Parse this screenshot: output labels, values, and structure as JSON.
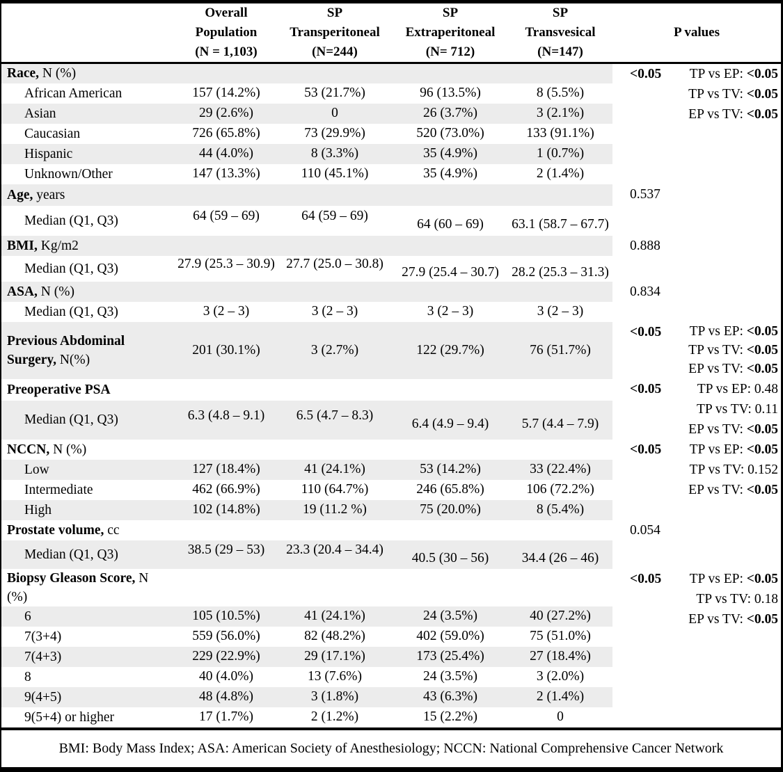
{
  "colors": {
    "stripe": "#ececec",
    "border": "#000000",
    "text": "#000000",
    "background": "#ffffff"
  },
  "table": {
    "header": {
      "col_labels": [
        {
          "key": "overall",
          "lines": [
            "Overall",
            "Population",
            "(N = 1,103)"
          ]
        },
        {
          "key": "transperitoneal",
          "lines": [
            "SP",
            "Transperitoneal",
            "(N=244)"
          ]
        },
        {
          "key": "extraperitoneal",
          "lines": [
            "SP",
            "Extraperitoneal",
            "(N= 712)"
          ]
        },
        {
          "key": "transvesical",
          "lines": [
            "SP",
            "Transvesical",
            "(N=147)"
          ]
        }
      ],
      "p_label": "P values"
    },
    "rows": [
      {
        "name": "race-header",
        "type": "section",
        "bold": "Race,",
        "rest": " N (%)",
        "values": [
          "",
          "",
          "",
          ""
        ],
        "p": {
          "text": "<0.05",
          "bold": true,
          "span": 6
        },
        "pair": {
          "lines": [
            {
              "label": "TP vs EP: ",
              "value": "<0.05",
              "bold": true
            },
            {
              "label": "TP vs TV: ",
              "value": "<0.05",
              "bold": true
            },
            {
              "label": "EP vs TV: ",
              "value": "<0.05",
              "bold": true
            }
          ]
        }
      },
      {
        "name": "race-african-american",
        "type": "item",
        "label": "African American",
        "values": [
          "157 (14.2%)",
          "53 (21.7%)",
          "96 (13.5%)",
          "8 (5.5%)"
        ]
      },
      {
        "name": "race-asian",
        "type": "item",
        "label": "Asian",
        "values": [
          "29 (2.6%)",
          "0",
          "26 (3.7%)",
          "3 (2.1%)"
        ]
      },
      {
        "name": "race-caucasian",
        "type": "item",
        "label": "Caucasian",
        "values": [
          "726 (65.8%)",
          "73 (29.9%)",
          "520 (73.0%)",
          "133 (91.1%)"
        ]
      },
      {
        "name": "race-hispanic",
        "type": "item",
        "label": "Hispanic",
        "values": [
          "44 (4.0%)",
          "8 (3.3%)",
          "35 (4.9%)",
          "1 (0.7%)"
        ]
      },
      {
        "name": "race-unknown-other",
        "type": "item",
        "label": "Unknown/Other",
        "values": [
          "147 (13.3%)",
          "110 (45.1%)",
          "35 (4.9%)",
          "2 (1.4%)"
        ]
      },
      {
        "name": "age-header",
        "type": "section",
        "bold": "Age,",
        "rest": " years",
        "values": [
          "",
          "",
          "",
          ""
        ],
        "p": {
          "text": "0.537",
          "bold": false,
          "span": 2
        }
      },
      {
        "name": "age-median",
        "type": "item",
        "label": "Median (Q1, Q3)",
        "values": [
          "64 (59 – 69)",
          "64 (59 – 69)",
          "64 (60 – 69)",
          "63.1 (58.7 – 67.7)"
        ]
      },
      {
        "name": "bmi-header",
        "type": "section",
        "bold": "BMI,",
        "rest": " Kg/m2",
        "values": [
          "",
          "",
          "",
          ""
        ],
        "p": {
          "text": "0.888",
          "bold": false,
          "span": 2
        }
      },
      {
        "name": "bmi-median",
        "type": "item",
        "label": "Median (Q1, Q3)",
        "values": [
          "27.9 (25.3 – 30.9)",
          "27.7 (25.0 – 30.8)",
          "27.9 (25.4 – 30.7)",
          "28.2 (25.3 – 31.3)"
        ]
      },
      {
        "name": "asa-header",
        "type": "section",
        "bold": "ASA,",
        "rest": " N (%)",
        "values": [
          "",
          "",
          "",
          ""
        ],
        "p": {
          "text": "0.834",
          "bold": false,
          "span": 2
        }
      },
      {
        "name": "asa-median",
        "type": "item",
        "label": "Median (Q1, Q3)",
        "values": [
          "3 (2 – 3)",
          "3 (2 – 3)",
          "3 (2 – 3)",
          "3 (2 – 3)"
        ]
      },
      {
        "name": "previous-abdominal-surgery",
        "type": "section",
        "bold": "Previous Abdominal Surgery,",
        "rest": " N(%)",
        "values": [
          "201 (30.1%)",
          "3 (2.7%)",
          "122 (29.7%)",
          "76 (51.7%)"
        ],
        "p": {
          "text": "<0.05",
          "bold": true,
          "span": 1
        },
        "pair": {
          "lines": [
            {
              "label": "TP vs EP: ",
              "value": "<0.05",
              "bold": true
            },
            {
              "label": "TP vs TV: ",
              "value": "<0.05",
              "bold": true
            },
            {
              "label": "EP vs TV: ",
              "value": "<0.05",
              "bold": true
            }
          ]
        }
      },
      {
        "name": "psa-header",
        "type": "section",
        "bold": "Preoperative PSA",
        "rest": "",
        "values": [
          "",
          "",
          "",
          ""
        ],
        "p": {
          "text": "<0.05",
          "bold": true,
          "span": 2
        },
        "pair": {
          "lines": [
            {
              "label": "TP vs EP: ",
              "value": "0.48",
              "bold": false
            },
            {
              "label": "TP vs TV: ",
              "value": "0.11",
              "bold": false
            },
            {
              "label": "EP vs TV: ",
              "value": "<0.05",
              "bold": true
            }
          ]
        }
      },
      {
        "name": "psa-median",
        "type": "item",
        "label": "Median (Q1, Q3)",
        "values": [
          "6.3 (4.8 – 9.1)",
          "6.5 (4.7 – 8.3)",
          "6.4 (4.9 – 9.4)",
          "5.7 (4.4 – 7.9)"
        ]
      },
      {
        "name": "nccn-header",
        "type": "section",
        "bold": "NCCN,",
        "rest": " N (%)",
        "values": [
          "",
          "",
          "",
          ""
        ],
        "p": {
          "text": "<0.05",
          "bold": true,
          "span": 4
        },
        "pair": {
          "lines": [
            {
              "label": "TP vs EP: ",
              "value": "<0.05",
              "bold": true
            },
            {
              "label": "TP vs TV: ",
              "value": "0.152",
              "bold": false
            },
            {
              "label": "EP vs TV: ",
              "value": "<0.05",
              "bold": true
            }
          ]
        }
      },
      {
        "name": "nccn-low",
        "type": "item",
        "label": "Low",
        "values": [
          "127 (18.4%)",
          "41 (24.1%)",
          "53 (14.2%)",
          "33 (22.4%)"
        ]
      },
      {
        "name": "nccn-intermediate",
        "type": "item",
        "label": "Intermediate",
        "values": [
          "462 (66.9%)",
          "110 (64.7%)",
          "246 (65.8%)",
          "106 (72.2%)"
        ]
      },
      {
        "name": "nccn-high",
        "type": "item",
        "label": "High",
        "values": [
          "102 (14.8%)",
          "19 (11.2 %)",
          "75 (20.0%)",
          "8 (5.4%)"
        ]
      },
      {
        "name": "prostate-volume-header",
        "type": "section",
        "bold": "Prostate volume,",
        "rest": " cc",
        "values": [
          "",
          "",
          "",
          ""
        ],
        "p": {
          "text": "0.054",
          "bold": false,
          "span": 2
        }
      },
      {
        "name": "prostate-volume-median",
        "type": "item",
        "label": "Median (Q1, Q3)",
        "values": [
          "38.5 (29 – 53)",
          "23.3 (20.4 – 34.4)",
          "40.5 (30 – 56)",
          "34.4 (26 – 46)"
        ]
      },
      {
        "name": "gleason-header",
        "type": "section",
        "bold": "Biopsy Gleason Score,",
        "rest": " N (%)",
        "values": [
          "",
          "",
          "",
          ""
        ],
        "p": {
          "text": "<0.05",
          "bold": true,
          "span": 7
        },
        "pair": {
          "lines": [
            {
              "label": "TP vs EP: ",
              "value": "<0.05",
              "bold": true
            },
            {
              "label": "TP vs TV: ",
              "value": "0.18",
              "bold": false
            },
            {
              "label": "EP vs TV: ",
              "value": "<0.05",
              "bold": true
            }
          ]
        }
      },
      {
        "name": "gleason-6",
        "type": "item",
        "label": "6",
        "values": [
          "105 (10.5%)",
          "41 (24.1%)",
          "24 (3.5%)",
          "40 (27.2%)"
        ]
      },
      {
        "name": "gleason-7-3-4",
        "type": "item",
        "label": "7(3+4)",
        "values": [
          "559 (56.0%)",
          "82 (48.2%)",
          "402 (59.0%)",
          "75 (51.0%)"
        ]
      },
      {
        "name": "gleason-7-4-3",
        "type": "item",
        "label": "7(4+3)",
        "values": [
          "229 (22.9%)",
          "29 (17.1%)",
          "173 (25.4%)",
          "27 (18.4%)"
        ]
      },
      {
        "name": "gleason-8",
        "type": "item",
        "label": "8",
        "values": [
          "40 (4.0%)",
          "13 (7.6%)",
          "24 (3.5%)",
          "3 (2.0%)"
        ]
      },
      {
        "name": "gleason-9-4-5",
        "type": "item",
        "label": "9(4+5)",
        "values": [
          "48 (4.8%)",
          "3 (1.8%)",
          "43 (6.3%)",
          "2 (1.4%)"
        ]
      },
      {
        "name": "gleason-9-5-4-or-higher",
        "type": "item",
        "label": "9(5+4) or higher",
        "values": [
          "17 (1.7%)",
          "2 (1.2%)",
          "15 (2.2%)",
          "0"
        ]
      }
    ]
  },
  "footer": {
    "text": "BMI: Body Mass Index; ASA: American Society of Anesthesiology; NCCN: National Comprehensive Cancer Network"
  }
}
